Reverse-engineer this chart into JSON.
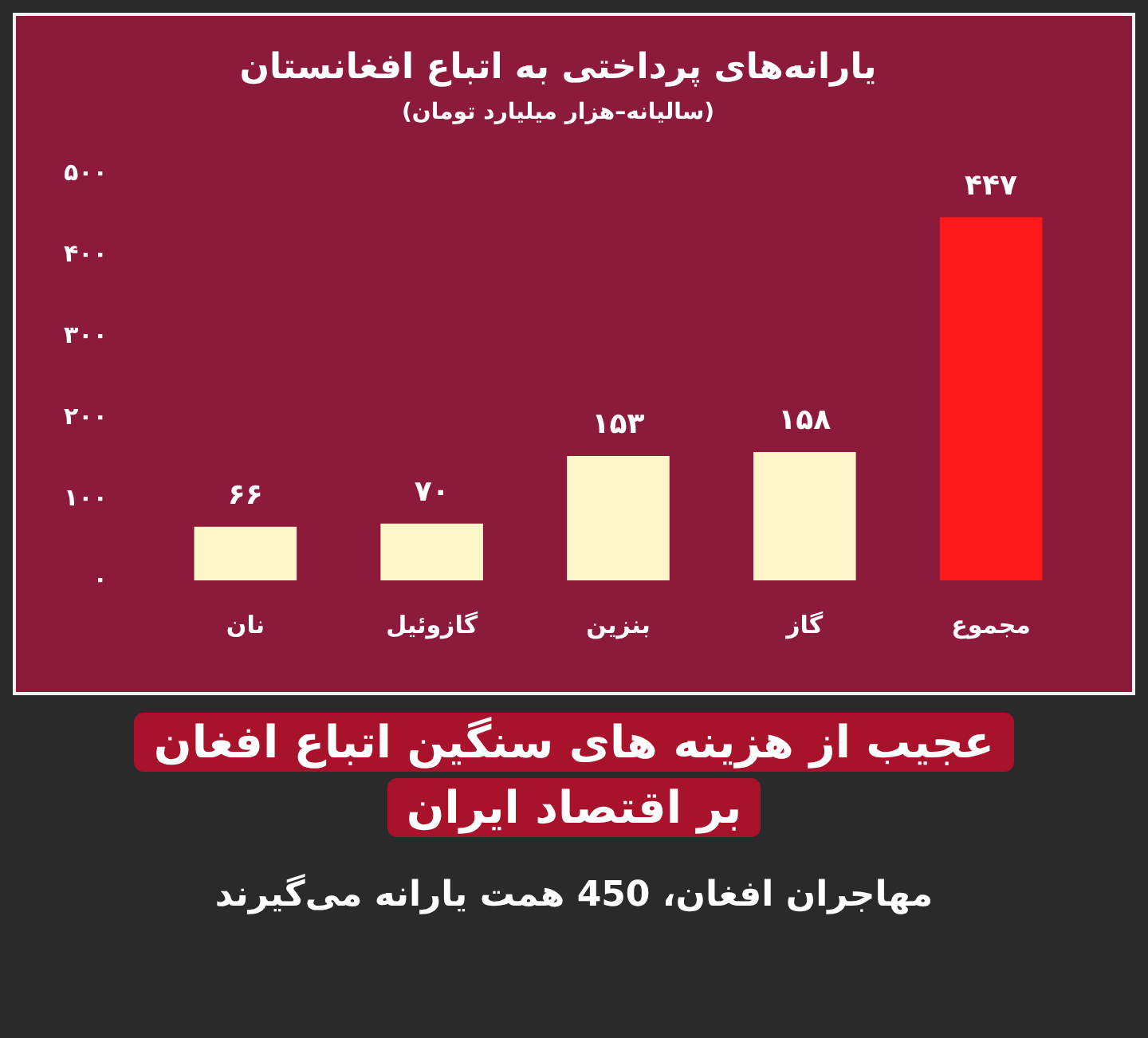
{
  "chart_data": {
    "type": "bar",
    "title": "یارانه‌های پرداختی به اتباع افغانستان",
    "subtitle": "(سالیانه–هزار میلیارد تومان)",
    "categories": [
      "نان",
      "گازوئیل",
      "بنزین",
      "گاز",
      "مجموع"
    ],
    "values": [
      66,
      70,
      153,
      158,
      447
    ],
    "colors": [
      "#fff6c9",
      "#fff6c9",
      "#fff6c9",
      "#fff6c9",
      "#ff1a1a"
    ],
    "value_labels": [
      "۶۶",
      "۷۰",
      "۱۵۳",
      "۱۵۸",
      "۴۴۷"
    ],
    "ylim": [
      0,
      500
    ],
    "yticks": [
      {
        "value": 0,
        "label": "۰"
      },
      {
        "value": 100,
        "label": "۱۰۰"
      },
      {
        "value": 200,
        "label": "۲۰۰"
      },
      {
        "value": 300,
        "label": "۳۰۰"
      },
      {
        "value": 400,
        "label": "۴۰۰"
      },
      {
        "value": 500,
        "label": "۵۰۰"
      }
    ],
    "grid": false,
    "legend": false,
    "annotations": [
      "عجیب از هزینه های سنگین اتباع افغان",
      "بر اقتصاد ایران",
      "مهاجران افغان، 450 همت یارانه می‌گیرند"
    ]
  }
}
